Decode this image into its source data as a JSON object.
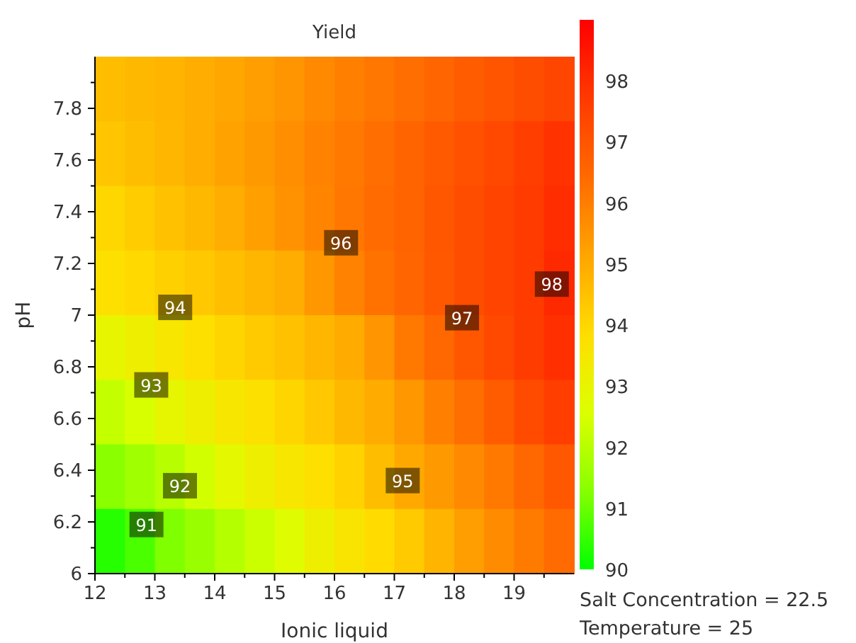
{
  "chart_data": {
    "type": "heatmap",
    "title": "Yield",
    "xlabel": "Ionic liquid",
    "ylabel": "pH",
    "xlim": [
      12,
      20
    ],
    "ylim": [
      6,
      8
    ],
    "xticks": [
      12,
      {
        "value": 12.5,
        "label": null
      },
      13,
      {
        "value": 13.5,
        "label": null
      },
      14,
      {
        "value": 14.5,
        "label": null
      },
      15,
      {
        "value": 15.5,
        "label": null
      },
      16,
      {
        "value": 16.5,
        "label": null
      },
      17,
      {
        "value": 17.5,
        "label": null
      },
      18,
      {
        "value": 18.5,
        "label": null
      },
      19,
      {
        "value": 19.5,
        "label": null
      }
    ],
    "yticks": [
      6,
      {
        "value": 6.1,
        "label": null
      },
      6.2,
      {
        "value": 6.3,
        "label": null
      },
      6.4,
      {
        "value": 6.5,
        "label": null
      },
      6.6,
      {
        "value": 6.7,
        "label": null
      },
      6.8,
      {
        "value": 6.9,
        "label": null
      },
      7,
      {
        "value": 7.1,
        "label": null
      },
      7.2,
      {
        "value": 7.3,
        "label": null
      },
      7.4,
      {
        "value": 7.5,
        "label": null
      },
      7.6,
      {
        "value": 7.7,
        "label": null
      },
      7.8,
      {
        "value": 7.9,
        "label": null
      }
    ],
    "clim": [
      90,
      99
    ],
    "cticks": [
      90,
      91,
      92,
      93,
      94,
      95,
      96,
      97,
      98
    ],
    "cells": [
      [
        94.6,
        94.7,
        94.8,
        94.95,
        95.1,
        95.3,
        95.5,
        95.75,
        95.95,
        96.15,
        96.35,
        96.55,
        96.8,
        97.0,
        97.2,
        97.4
      ],
      [
        94.4,
        94.6,
        94.75,
        94.95,
        95.2,
        95.4,
        95.65,
        95.9,
        96.1,
        96.35,
        96.6,
        96.85,
        97.1,
        97.35,
        97.6,
        97.9
      ],
      [
        94.0,
        94.25,
        94.5,
        94.7,
        94.95,
        95.25,
        95.55,
        95.85,
        96.15,
        96.4,
        96.6,
        96.95,
        97.2,
        97.45,
        97.7,
        98.0
      ],
      [
        93.8,
        93.95,
        94.15,
        94.35,
        94.55,
        94.75,
        94.97,
        95.45,
        95.9,
        96.25,
        96.55,
        96.9,
        97.2,
        97.45,
        97.7,
        98.1
      ],
      [
        92.95,
        93.2,
        93.5,
        93.8,
        94.05,
        94.3,
        94.5,
        94.75,
        95.0,
        95.5,
        96.1,
        96.5,
        96.95,
        97.35,
        97.65,
        97.95
      ],
      [
        92.2,
        92.5,
        92.9,
        93.2,
        93.5,
        93.75,
        94.05,
        94.35,
        94.7,
        95.0,
        95.45,
        95.95,
        96.35,
        96.8,
        97.25,
        97.6
      ],
      [
        91.3,
        91.65,
        92.0,
        92.4,
        92.85,
        93.2,
        93.5,
        93.8,
        94.1,
        94.6,
        95.05,
        95.4,
        95.75,
        96.1,
        96.5,
        96.9
      ],
      [
        90.35,
        90.7,
        91.2,
        91.55,
        91.95,
        92.3,
        92.7,
        93.2,
        93.6,
        93.9,
        94.3,
        94.8,
        95.3,
        95.7,
        96.05,
        96.4
      ]
    ],
    "annotations": [
      "91",
      "92",
      "93",
      "94",
      "95",
      "96",
      "97",
      "98",
      "Salt Concentration = 22.5",
      "Temperature = 25"
    ]
  }
}
